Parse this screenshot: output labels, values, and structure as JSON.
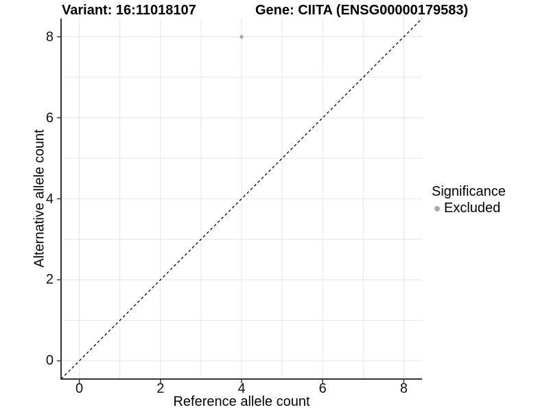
{
  "chart_data": {
    "type": "scatter",
    "title_left": "Variant: 16:11018107",
    "title_right": "Gene: CIITA (ENSG00000179583)",
    "xlabel": "Reference allele count",
    "ylabel": "Alternative allele count",
    "xlim": [
      -0.45,
      8.45
    ],
    "ylim": [
      -0.45,
      8.45
    ],
    "x_ticks": [
      0,
      2,
      4,
      6,
      8
    ],
    "y_ticks": [
      0,
      2,
      4,
      6,
      8
    ],
    "grid_values": [
      0,
      1,
      2,
      3,
      4,
      5,
      6,
      7,
      8
    ],
    "grid": "on",
    "series": [
      {
        "name": "Excluded",
        "marker": "circle",
        "color": "#aaaaaa",
        "points": [
          {
            "x": 4,
            "y": 8
          }
        ]
      }
    ],
    "reference_line": {
      "kind": "identity-diagonal",
      "style": "dashed",
      "color": "#000000"
    },
    "legend": {
      "title": "Significance",
      "position": "right-middle",
      "items": [
        {
          "label": "Excluded",
          "color": "#aaaaaa",
          "marker": "circle"
        }
      ]
    }
  },
  "colors": {
    "background": "#ffffff",
    "gridline": "#e9e9e9",
    "axis_line": "#333333",
    "tick_mark": "#333333",
    "tick_text": "#111111",
    "title_text": "#000000",
    "point": "#aaaaaa"
  }
}
